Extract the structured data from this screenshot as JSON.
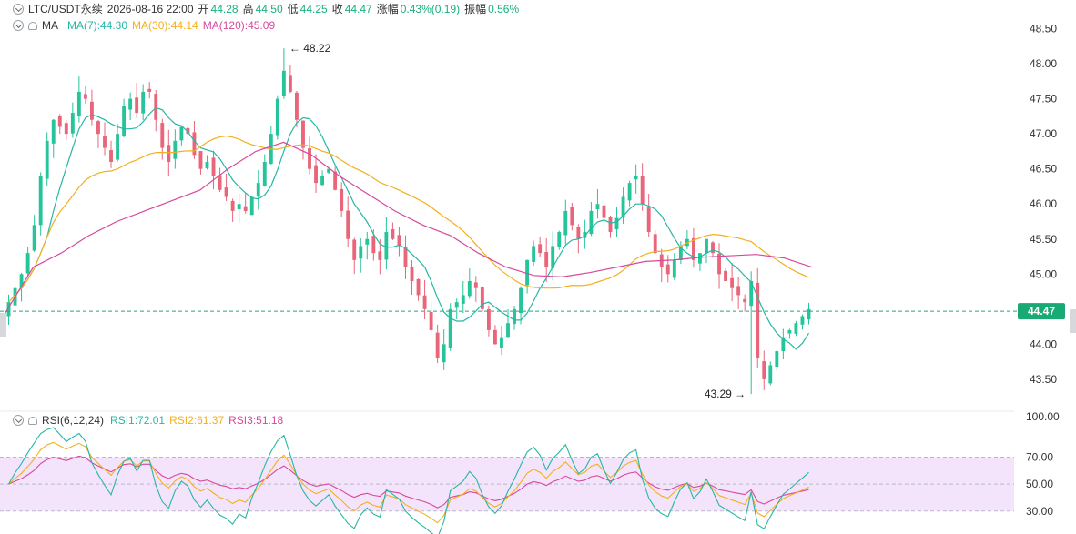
{
  "header": {
    "symbol": "LTC/USDT永续",
    "datetime": "2026-08-16 22:00",
    "open_label": "开",
    "open": "44.28",
    "high_label": "高",
    "high": "44.50",
    "low_label": "低",
    "low": "44.25",
    "close_label": "收",
    "close": "44.47",
    "change_label": "涨幅",
    "change": "0.43%(0.19)",
    "amp_label": "振幅",
    "amp": "0.56%"
  },
  "ma_legend": {
    "name": "MA",
    "ma7": "MA(7):44.30",
    "ma30": "MA(30):44.14",
    "ma120": "MA(120):45.09"
  },
  "rsi_legend": {
    "name": "RSI(6,12,24)",
    "rsi1": "RSI1:72.01",
    "rsi2": "RSI2:61.37",
    "rsi3": "RSI3:51.18"
  },
  "colors": {
    "up": "#26c49a",
    "down": "#e8657a",
    "ma7": "#26b7a4",
    "ma30": "#f2b01e",
    "ma120": "#d8489c",
    "rsi1": "#26b7a4",
    "rsi2": "#f2b01e",
    "rsi3": "#d8489c",
    "rsi_band": "#f3e4fb",
    "current_line": "#27a383"
  },
  "chart_data": [
    {
      "type": "candlestick",
      "title": "LTC/USDT永续",
      "ylim": [
        43.2,
        48.65
      ],
      "yticks": [
        "48.50",
        "48.00",
        "47.50",
        "47.00",
        "46.50",
        "46.00",
        "45.50",
        "45.00",
        "44.00",
        "43.50"
      ],
      "last_price": 44.47,
      "last_price_label": "44.47",
      "high_marker": {
        "value": 48.22,
        "label": "48.22"
      },
      "low_marker": {
        "value": 43.29,
        "label": "43.29"
      },
      "closes": [
        44.6,
        44.8,
        45.0,
        45.3,
        45.7,
        46.4,
        46.9,
        47.2,
        47.1,
        47.0,
        47.3,
        47.6,
        47.5,
        47.2,
        47.0,
        46.8,
        46.6,
        47.0,
        47.4,
        47.5,
        47.3,
        47.6,
        47.6,
        47.2,
        46.8,
        46.6,
        46.9,
        47.1,
        47.0,
        46.7,
        46.5,
        46.6,
        46.4,
        46.2,
        46.1,
        45.9,
        46.0,
        45.9,
        46.1,
        46.3,
        46.6,
        47.0,
        47.5,
        47.9,
        47.6,
        47.2,
        46.8,
        46.5,
        46.3,
        46.4,
        46.5,
        46.2,
        45.9,
        45.5,
        45.2,
        45.4,
        45.5,
        45.3,
        45.2,
        45.6,
        45.5,
        45.4,
        45.1,
        44.9,
        44.7,
        44.5,
        44.2,
        43.8,
        44.0,
        44.5,
        44.6,
        44.7,
        44.9,
        44.8,
        44.5,
        44.2,
        44.0,
        44.1,
        44.3,
        44.5,
        44.8,
        45.2,
        45.4,
        45.3,
        45.1,
        45.4,
        45.6,
        45.9,
        45.7,
        45.5,
        45.6,
        45.9,
        46.0,
        45.8,
        45.6,
        45.8,
        46.1,
        46.3,
        46.4,
        46.0,
        45.6,
        45.3,
        45.1,
        45.0,
        45.2,
        45.4,
        45.5,
        45.2,
        45.3,
        45.5,
        45.3,
        45.0,
        44.9,
        44.8,
        44.7,
        44.6,
        44.9,
        43.8,
        43.5,
        43.7,
        43.9,
        44.1,
        44.2,
        44.3,
        44.4,
        44.5
      ],
      "series": [
        {
          "name": "MA(7)",
          "last": 44.3
        },
        {
          "name": "MA(30)",
          "last": 44.14
        },
        {
          "name": "MA(120)",
          "last": 45.09,
          "values": [
            44.45,
            45.1,
            45.3,
            45.55,
            45.75,
            45.9,
            46.05,
            46.2,
            46.5,
            46.75,
            46.88,
            46.7,
            46.4,
            46.15,
            45.9,
            45.7,
            45.55,
            45.3,
            45.1,
            44.98,
            44.96,
            45.02,
            45.1,
            45.18,
            45.2,
            45.24,
            45.26,
            45.28,
            45.23,
            45.1
          ]
        }
      ]
    },
    {
      "type": "line",
      "title": "RSI(6,12,24)",
      "ylim": [
        15,
        100
      ],
      "yticks": [
        "100.00",
        "70.00",
        "50.00",
        "30.00"
      ],
      "series": [
        {
          "name": "RSI1",
          "last": 72.01
        },
        {
          "name": "RSI2",
          "last": 61.37
        },
        {
          "name": "RSI3",
          "last": 51.18
        }
      ]
    }
  ]
}
